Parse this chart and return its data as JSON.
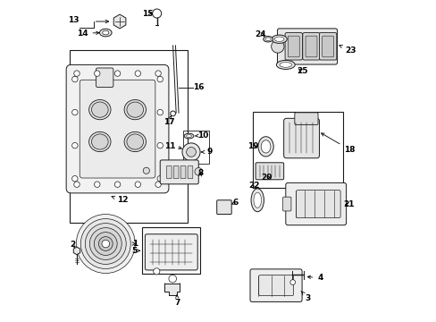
{
  "background_color": "#ffffff",
  "line_color": "#1a1a1a",
  "figsize": [
    4.89,
    3.6
  ],
  "dpi": 100,
  "fig_w": 489,
  "fig_h": 360,
  "label_positions": {
    "1": [
      0.285,
      0.345,
      0.235,
      0.345
    ],
    "2": [
      0.048,
      0.285,
      0.048,
      0.255
    ],
    "3": [
      0.74,
      0.082,
      0.79,
      0.068
    ],
    "4": [
      0.79,
      0.142,
      0.82,
      0.128
    ],
    "5": [
      0.265,
      0.345,
      0.22,
      0.345
    ],
    "6": [
      0.538,
      0.37,
      0.555,
      0.348
    ],
    "7": [
      0.37,
      0.068,
      0.355,
      0.045
    ],
    "8": [
      0.43,
      0.455,
      0.462,
      0.448
    ],
    "9": [
      0.455,
      0.53,
      0.488,
      0.53
    ],
    "10": [
      0.455,
      0.57,
      0.488,
      0.57
    ],
    "11": [
      0.345,
      0.54,
      0.31,
      0.54
    ],
    "12": [
      0.172,
      0.388,
      0.2,
      0.388
    ],
    "13": [
      0.048,
      0.92,
      0.038,
      0.94
    ],
    "14": [
      0.105,
      0.892,
      0.082,
      0.905
    ],
    "15": [
      0.298,
      0.93,
      0.275,
      0.945
    ],
    "16": [
      0.4,
      0.695,
      0.432,
      0.695
    ],
    "17": [
      0.355,
      0.648,
      0.372,
      0.63
    ],
    "18": [
      0.875,
      0.535,
      0.91,
      0.535
    ],
    "19": [
      0.638,
      0.545,
      0.615,
      0.545
    ],
    "20": [
      0.652,
      0.495,
      0.638,
      0.475
    ],
    "21": [
      0.862,
      0.368,
      0.895,
      0.368
    ],
    "22": [
      0.625,
      0.388,
      0.61,
      0.408
    ],
    "23": [
      0.862,
      0.832,
      0.895,
      0.832
    ],
    "24": [
      0.638,
      0.888,
      0.612,
      0.888
    ],
    "25": [
      0.748,
      0.798,
      0.778,
      0.778
    ]
  }
}
